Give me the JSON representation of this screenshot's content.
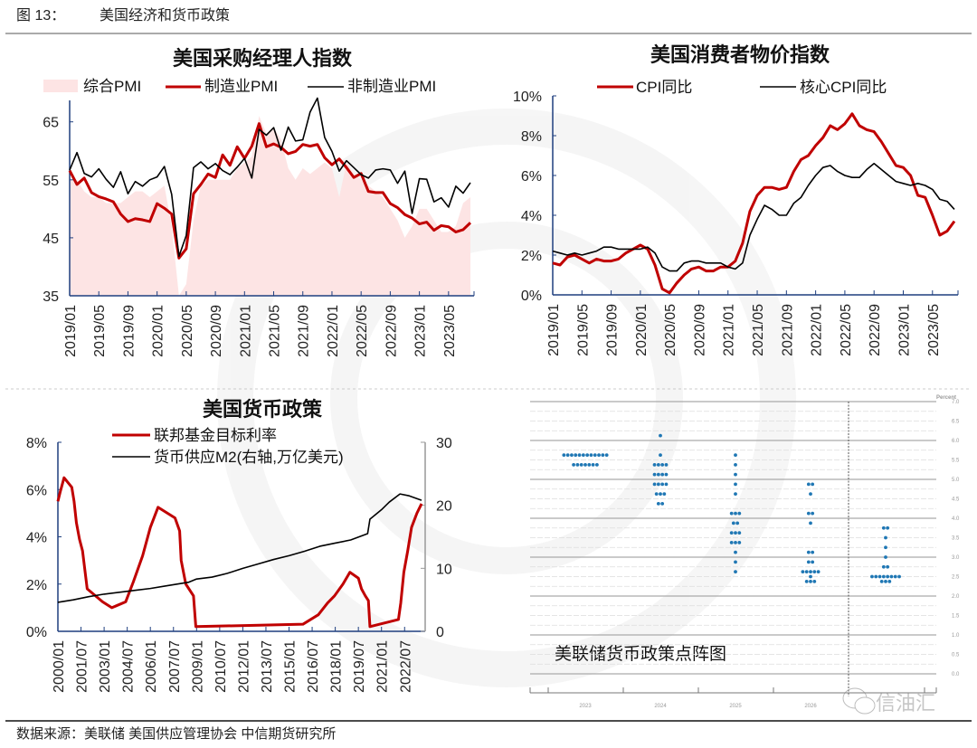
{
  "header": {
    "figure_no": "图 13：",
    "title": "美国经济和货币政策"
  },
  "footer": {
    "source": "数据来源：美联储 美国供应管理协会 中信期货研究所"
  },
  "watermark": {
    "text": "信油汇"
  },
  "colors": {
    "red": "#c00000",
    "black": "#000000",
    "pink": "#fde4e4",
    "axis": "#1f3f7f",
    "dot": "#1f77b4"
  },
  "chart_data": [
    {
      "type": "line",
      "title": "美国采购经理人指数",
      "ylim": [
        35,
        68
      ],
      "yticks": [
        35,
        45,
        55,
        65
      ],
      "xtick_labels": [
        "2019/01",
        "2019/05",
        "2019/09",
        "2020/01",
        "2020/05",
        "2020/09",
        "2021/01",
        "2021/05",
        "2021/09",
        "2022/01",
        "2022/05",
        "2022/09",
        "2023/01",
        "2023/05"
      ],
      "x_start": "2019/01",
      "x_freq": "monthly",
      "legend": [
        "综合PMI",
        "制造业PMI",
        "非制造业PMI"
      ],
      "series": [
        {
          "name": "综合PMI",
          "style": "area",
          "values": [
            55,
            55,
            53,
            52,
            52,
            51,
            51,
            51,
            52,
            53,
            53,
            52,
            53,
            54,
            47,
            35,
            37,
            48,
            54,
            55,
            55,
            55,
            55,
            57,
            58,
            59,
            66,
            63,
            64,
            62,
            57,
            55,
            57,
            56,
            57,
            58,
            57,
            52,
            58,
            56,
            55,
            54,
            53,
            52,
            50,
            48,
            45,
            47,
            50,
            50,
            48,
            46,
            46,
            47,
            51,
            52
          ]
        },
        {
          "name": "制造业PMI",
          "style": "line-red",
          "values": [
            56.6,
            54.2,
            55.3,
            52.8,
            52.1,
            51.7,
            51.2,
            49.1,
            47.8,
            48.3,
            48.1,
            47.8,
            50.9,
            50.1,
            49.1,
            41.5,
            43.1,
            52.6,
            54.2,
            56.0,
            55.4,
            59.3,
            57.5,
            60.7,
            58.7,
            60.8,
            64.7,
            60.7,
            61.2,
            60.6,
            59.5,
            59.9,
            61.1,
            60.8,
            61.1,
            58.8,
            57.6,
            58.6,
            57.1,
            55.4,
            56.1,
            53.0,
            52.8,
            52.8,
            50.9,
            50.2,
            49.0,
            48.4,
            47.4,
            47.7,
            46.3,
            47.1,
            46.9,
            46.0,
            46.4,
            47.6
          ]
        },
        {
          "name": "非制造业PMI",
          "style": "line-black",
          "values": [
            56.7,
            59.7,
            56.1,
            55.5,
            56.9,
            55.1,
            53.7,
            56.4,
            52.6,
            54.7,
            53.9,
            55.0,
            55.5,
            57.3,
            52.5,
            41.8,
            45.4,
            57.1,
            58.1,
            56.9,
            57.8,
            56.6,
            55.9,
            57.2,
            58.7,
            55.3,
            63.7,
            62.7,
            64.0,
            60.1,
            64.1,
            61.7,
            61.9,
            66.7,
            69.1,
            62.3,
            59.9,
            56.5,
            58.3,
            57.1,
            55.9,
            55.3,
            56.7,
            56.9,
            56.7,
            54.4,
            56.5,
            49.2,
            55.2,
            55.1,
            51.2,
            51.9,
            50.3,
            53.9,
            52.7,
            54.5
          ]
        }
      ]
    },
    {
      "type": "line",
      "title": "美国消费者物价指数",
      "ylim": [
        0,
        10
      ],
      "yticks": [
        "0%",
        "2%",
        "4%",
        "6%",
        "8%",
        "10%"
      ],
      "xtick_labels": [
        "2019/01",
        "2019/05",
        "2019/09",
        "2020/01",
        "2020/05",
        "2020/09",
        "2021/01",
        "2021/05",
        "2021/09",
        "2022/01",
        "2022/05",
        "2022/09",
        "2023/01",
        "2023/05"
      ],
      "x_start": "2019/01",
      "x_freq": "monthly",
      "legend": [
        "CPI同比",
        "核心CPI同比"
      ],
      "series": [
        {
          "name": "CPI同比",
          "style": "line-red",
          "values": [
            1.6,
            1.5,
            1.9,
            2.0,
            1.8,
            1.6,
            1.8,
            1.7,
            1.7,
            1.8,
            2.1,
            2.3,
            2.5,
            2.3,
            1.5,
            0.3,
            0.1,
            0.6,
            1.0,
            1.3,
            1.4,
            1.2,
            1.2,
            1.4,
            1.4,
            1.7,
            2.6,
            4.2,
            5.0,
            5.4,
            5.4,
            5.3,
            5.4,
            6.2,
            6.8,
            7.0,
            7.5,
            7.9,
            8.5,
            8.3,
            8.6,
            9.1,
            8.5,
            8.3,
            8.2,
            7.7,
            7.1,
            6.5,
            6.4,
            6.0,
            5.0,
            4.9,
            4.0,
            3.0,
            3.2,
            3.7
          ]
        },
        {
          "name": "核心CPI同比",
          "style": "line-black",
          "values": [
            2.2,
            2.1,
            2.0,
            2.1,
            2.0,
            2.1,
            2.2,
            2.4,
            2.4,
            2.3,
            2.3,
            2.3,
            2.3,
            2.4,
            2.1,
            1.4,
            1.2,
            1.2,
            1.6,
            1.7,
            1.7,
            1.6,
            1.6,
            1.6,
            1.4,
            1.3,
            1.6,
            3.0,
            3.8,
            4.5,
            4.3,
            4.0,
            4.0,
            4.6,
            4.9,
            5.5,
            6.0,
            6.4,
            6.5,
            6.2,
            6.0,
            5.9,
            5.9,
            6.3,
            6.6,
            6.3,
            6.0,
            5.7,
            5.6,
            5.5,
            5.6,
            5.5,
            5.3,
            4.8,
            4.7,
            4.3
          ]
        }
      ]
    },
    {
      "type": "line",
      "title": "美国货币政策",
      "ylim_left": [
        0,
        8
      ],
      "ylim_right": [
        0,
        30
      ],
      "yticks_left": [
        "0%",
        "2%",
        "4%",
        "6%",
        "8%"
      ],
      "yticks_right": [
        "0",
        "10",
        "20",
        "30"
      ],
      "xlim": [
        2000.0,
        2023.6
      ],
      "xtick_labels": [
        "2000/01",
        "2001/07",
        "2003/01",
        "2004/07",
        "2006/01",
        "2007/07",
        "2009/01",
        "2010/07",
        "2012/01",
        "2013/07",
        "2015/01",
        "2016/07",
        "2018/01",
        "2019/07",
        "2021/01",
        "2022/07"
      ],
      "legend": [
        "联邦基金目标利率",
        "货币供应M2(右轴,万亿美元)"
      ],
      "series": [
        {
          "name": "联邦基金目标利率",
          "axis": "left",
          "style": "line-red",
          "points": [
            [
              2000.0,
              5.5
            ],
            [
              2000.15,
              5.9
            ],
            [
              2000.4,
              6.5
            ],
            [
              2000.9,
              6.1
            ],
            [
              2001.05,
              5.5
            ],
            [
              2001.2,
              4.6
            ],
            [
              2001.4,
              3.9
            ],
            [
              2001.6,
              3.4
            ],
            [
              2001.9,
              1.8
            ],
            [
              2002.9,
              1.25
            ],
            [
              2003.5,
              1.0
            ],
            [
              2004.4,
              1.25
            ],
            [
              2004.9,
              2.1
            ],
            [
              2005.5,
              3.2
            ],
            [
              2006.0,
              4.4
            ],
            [
              2006.5,
              5.25
            ],
            [
              2007.6,
              4.8
            ],
            [
              2007.9,
              4.25
            ],
            [
              2008.0,
              3.0
            ],
            [
              2008.3,
              2.0
            ],
            [
              2008.8,
              1.5
            ],
            [
              2008.95,
              0.2
            ],
            [
              2015.9,
              0.3
            ],
            [
              2016.9,
              0.7
            ],
            [
              2017.5,
              1.2
            ],
            [
              2017.95,
              1.5
            ],
            [
              2018.5,
              2.0
            ],
            [
              2018.95,
              2.5
            ],
            [
              2019.5,
              2.25
            ],
            [
              2019.7,
              1.8
            ],
            [
              2019.95,
              1.5
            ],
            [
              2020.15,
              1.3
            ],
            [
              2020.25,
              0.2
            ],
            [
              2022.1,
              0.5
            ],
            [
              2022.25,
              1.2
            ],
            [
              2022.45,
              2.5
            ],
            [
              2022.7,
              3.4
            ],
            [
              2022.95,
              4.4
            ],
            [
              2023.3,
              5.0
            ],
            [
              2023.6,
              5.4
            ]
          ]
        },
        {
          "name": "货币供应M2(右轴,万亿美元)",
          "axis": "right",
          "style": "line-black",
          "points": [
            [
              2000.0,
              4.6
            ],
            [
              2001.0,
              5.0
            ],
            [
              2002.0,
              5.5
            ],
            [
              2003.0,
              5.9
            ],
            [
              2004.0,
              6.2
            ],
            [
              2005.0,
              6.5
            ],
            [
              2006.0,
              6.8
            ],
            [
              2007.0,
              7.2
            ],
            [
              2008.5,
              7.8
            ],
            [
              2009.0,
              8.3
            ],
            [
              2010.0,
              8.6
            ],
            [
              2011.0,
              9.2
            ],
            [
              2012.0,
              10.0
            ],
            [
              2013.0,
              10.7
            ],
            [
              2014.0,
              11.4
            ],
            [
              2015.0,
              12.0
            ],
            [
              2016.0,
              12.7
            ],
            [
              2017.0,
              13.5
            ],
            [
              2018.0,
              14.0
            ],
            [
              2019.0,
              14.5
            ],
            [
              2020.1,
              15.5
            ],
            [
              2020.25,
              17.8
            ],
            [
              2020.6,
              18.5
            ],
            [
              2021.0,
              19.3
            ],
            [
              2021.5,
              20.5
            ],
            [
              2022.2,
              21.8
            ],
            [
              2022.8,
              21.5
            ],
            [
              2023.6,
              20.8
            ]
          ]
        }
      ]
    },
    {
      "type": "scatter",
      "title": "美联储货币政策点阵图",
      "ylabel": "Percent",
      "ylim": [
        0,
        7
      ],
      "yticks": [
        "0.0",
        "0.5",
        "1.0",
        "1.5",
        "2.0",
        "2.5",
        "3.0",
        "3.5",
        "4.0",
        "4.5",
        "5.0",
        "5.5",
        "6.0",
        "6.5",
        "7.0"
      ],
      "columns": [
        {
          "label": "2023",
          "dots": [
            [
              5.625,
              12
            ],
            [
              5.375,
              7
            ]
          ]
        },
        {
          "label": "2024",
          "dots": [
            [
              6.125,
              1
            ],
            [
              5.625,
              1
            ],
            [
              5.375,
              4
            ],
            [
              5.125,
              4
            ],
            [
              4.875,
              4
            ],
            [
              4.625,
              3
            ],
            [
              4.375,
              2
            ]
          ]
        },
        {
          "label": "2025",
          "dots": [
            [
              5.625,
              1
            ],
            [
              5.375,
              1
            ],
            [
              5.125,
              1
            ],
            [
              4.875,
              1
            ],
            [
              4.625,
              1
            ],
            [
              4.125,
              3
            ],
            [
              3.875,
              2
            ],
            [
              3.625,
              3
            ],
            [
              3.375,
              3
            ],
            [
              3.125,
              1
            ],
            [
              2.875,
              1
            ],
            [
              2.625,
              1
            ]
          ]
        },
        {
          "label": "2026",
          "dots": [
            [
              4.875,
              2
            ],
            [
              4.625,
              1
            ],
            [
              4.125,
              2
            ],
            [
              3.875,
              1
            ],
            [
              3.125,
              2
            ],
            [
              2.875,
              2
            ],
            [
              2.625,
              5
            ],
            [
              2.5,
              1
            ],
            [
              2.375,
              3
            ]
          ]
        },
        {
          "label": "",
          "dots": [
            [
              3.75,
              2
            ],
            [
              3.5,
              1
            ],
            [
              3.25,
              1
            ],
            [
              3.0,
              1
            ],
            [
              2.75,
              2
            ],
            [
              2.5,
              8
            ],
            [
              2.375,
              3
            ]
          ]
        }
      ]
    }
  ]
}
